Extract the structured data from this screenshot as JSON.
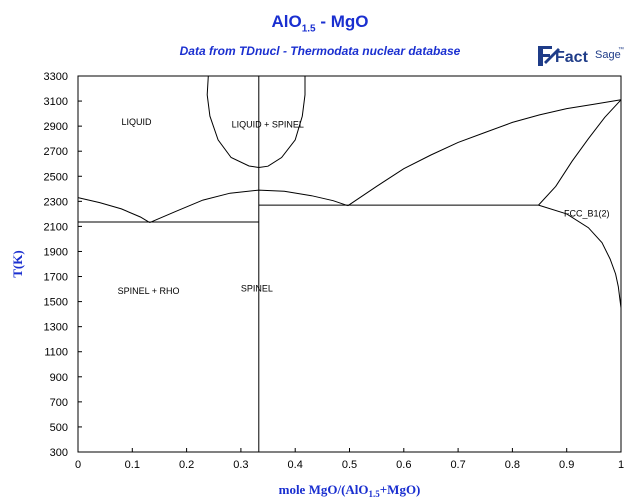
{
  "chart_data": {
    "type": "line",
    "title_main": "AlO",
    "title_sub": "1.5",
    "title_rest": " - MgO",
    "subtitle": "Data from TDnucl - Thermodata nuclear database",
    "logo": {
      "text_main": "Fact",
      "text_secondary": "Sage",
      "mark": "™"
    },
    "xlabel": {
      "prefix": "mole MgO/(AlO",
      "sub": "1.5",
      "suffix": "+MgO)"
    },
    "ylabel": "T(K)",
    "xlim": [
      0,
      1
    ],
    "ylim": [
      300,
      3300
    ],
    "x_ticks": [
      "0",
      "0.1",
      "0.2",
      "0.3",
      "0.4",
      "0.5",
      "0.6",
      "0.7",
      "0.8",
      "0.9",
      "1"
    ],
    "y_ticks": [
      "300",
      "500",
      "700",
      "900",
      "1100",
      "1300",
      "1500",
      "1700",
      "1900",
      "2100",
      "2300",
      "2500",
      "2700",
      "2900",
      "3100",
      "3300"
    ],
    "grid": false,
    "regions": [
      {
        "label": "LIQUID",
        "x": 0.08,
        "y": 2910
      },
      {
        "label": "LIQUID + SPINEL",
        "x": 0.283,
        "y": 2890
      },
      {
        "label": "FCC_B1(2)",
        "x": 0.895,
        "y": 2180
      },
      {
        "label": "SPINEL + RHO",
        "x": 0.073,
        "y": 1560
      },
      {
        "label": "SPINEL",
        "x": 0.3,
        "y": 1580
      }
    ],
    "series": [
      {
        "points": [
          [
            0,
            2330
          ],
          [
            0.04,
            2290
          ],
          [
            0.08,
            2240
          ],
          [
            0.115,
            2175
          ],
          [
            0.132,
            2130
          ]
        ]
      },
      {
        "points": [
          [
            0.132,
            2130
          ],
          [
            0.18,
            2220
          ],
          [
            0.23,
            2310
          ],
          [
            0.28,
            2365
          ],
          [
            0.333,
            2390
          ],
          [
            0.38,
            2380
          ],
          [
            0.43,
            2345
          ],
          [
            0.47,
            2305
          ],
          [
            0.497,
            2265
          ]
        ]
      },
      {
        "points": [
          [
            0,
            2135
          ],
          [
            0.333,
            2135
          ]
        ]
      },
      {
        "points": [
          [
            0.333,
            2270
          ],
          [
            0.848,
            2270
          ]
        ]
      },
      {
        "points": [
          [
            0.333,
            300
          ],
          [
            0.333,
            3300
          ]
        ]
      },
      {
        "points": [
          [
            0.24,
            3300
          ],
          [
            0.238,
            3150
          ],
          [
            0.243,
            2980
          ],
          [
            0.258,
            2790
          ],
          [
            0.282,
            2650
          ],
          [
            0.315,
            2582
          ],
          [
            0.333,
            2570
          ],
          [
            0.35,
            2580
          ],
          [
            0.375,
            2650
          ],
          [
            0.4,
            2790
          ],
          [
            0.413,
            2980
          ],
          [
            0.418,
            3150
          ],
          [
            0.418,
            3300
          ]
        ]
      },
      {
        "points": [
          [
            0.497,
            2265
          ],
          [
            0.55,
            2420
          ],
          [
            0.6,
            2560
          ],
          [
            0.65,
            2670
          ],
          [
            0.7,
            2770
          ],
          [
            0.75,
            2850
          ],
          [
            0.8,
            2930
          ],
          [
            0.85,
            2990
          ],
          [
            0.9,
            3040
          ],
          [
            0.95,
            3075
          ],
          [
            1.0,
            3110
          ]
        ]
      },
      {
        "points": [
          [
            0.848,
            2270
          ],
          [
            0.88,
            2420
          ],
          [
            0.91,
            2620
          ],
          [
            0.94,
            2800
          ],
          [
            0.97,
            2970
          ],
          [
            1.0,
            3110
          ]
        ]
      },
      {
        "points": [
          [
            0.848,
            2270
          ],
          [
            0.9,
            2200
          ],
          [
            0.94,
            2090
          ],
          [
            0.965,
            1970
          ],
          [
            0.98,
            1840
          ],
          [
            0.99,
            1720
          ],
          [
            0.995,
            1620
          ],
          [
            1.0,
            1450
          ]
        ]
      }
    ]
  }
}
